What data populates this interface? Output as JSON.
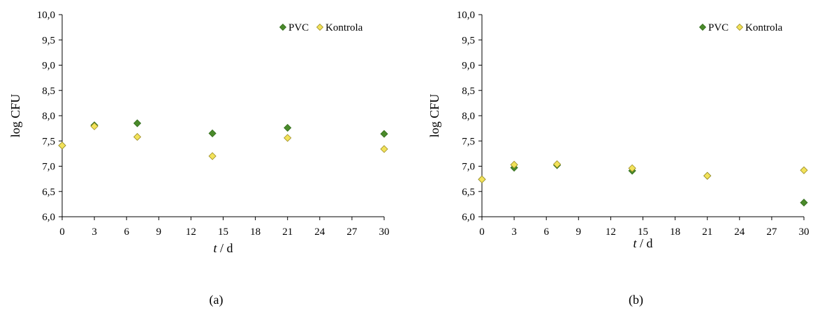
{
  "chart_data": [
    {
      "type": "scatter",
      "panel_label": "(a)",
      "xlabel_italic": "t",
      "xlabel_rest": " / d",
      "ylabel": "log CFU",
      "xlim": [
        0,
        30
      ],
      "ylim": [
        6.0,
        10.0
      ],
      "xticks": [
        0,
        3,
        6,
        9,
        12,
        15,
        18,
        21,
        24,
        27,
        30
      ],
      "xtick_labels": [
        "0",
        "3",
        "6",
        "9",
        "12",
        "15",
        "18",
        "21",
        "24",
        "27",
        "30"
      ],
      "yticks": [
        6.0,
        6.5,
        7.0,
        7.5,
        8.0,
        8.5,
        9.0,
        9.5,
        10.0
      ],
      "ytick_labels": [
        "6,0",
        "6,5",
        "7,0",
        "7,5",
        "8,0",
        "8,5",
        "9,0",
        "9,5",
        "10,0"
      ],
      "grid": false,
      "legend_position": "top-right",
      "series": [
        {
          "name": "PVC",
          "color": "#4a8a2a",
          "marker": "diamond",
          "x": [
            0,
            3,
            7,
            14,
            21,
            30
          ],
          "y": [
            7.41,
            7.81,
            7.85,
            7.65,
            7.76,
            7.64
          ]
        },
        {
          "name": "Kontrola",
          "color": "#f2e25a",
          "marker": "diamond",
          "x": [
            0,
            3,
            7,
            14,
            21,
            30
          ],
          "y": [
            7.41,
            7.79,
            7.58,
            7.2,
            7.56,
            7.34
          ]
        }
      ]
    },
    {
      "type": "scatter",
      "panel_label": "(b)",
      "xlabel_italic": "t",
      "xlabel_rest": " / d",
      "ylabel": "log CFU",
      "xlim": [
        0,
        30
      ],
      "ylim": [
        6.0,
        10.0
      ],
      "xticks": [
        0,
        3,
        6,
        9,
        12,
        15,
        18,
        21,
        24,
        27,
        30
      ],
      "xtick_labels": [
        "0",
        "3",
        "6",
        "9",
        "12",
        "15",
        "18",
        "21",
        "24",
        "27",
        "30"
      ],
      "yticks": [
        6.0,
        6.5,
        7.0,
        7.5,
        8.0,
        8.5,
        9.0,
        9.5,
        10.0
      ],
      "ytick_labels": [
        "6,0",
        "6,5",
        "7,0",
        "7,5",
        "8,0",
        "8,5",
        "9,0",
        "9,5",
        "10,0"
      ],
      "grid": false,
      "legend_position": "top-right",
      "series": [
        {
          "name": "PVC",
          "color": "#4a8a2a",
          "marker": "diamond",
          "x": [
            0,
            3,
            7,
            14,
            21,
            30
          ],
          "y": [
            6.74,
            6.97,
            7.02,
            6.91,
            6.81,
            6.28
          ]
        },
        {
          "name": "Kontrola",
          "color": "#f2e25a",
          "marker": "diamond",
          "x": [
            0,
            3,
            7,
            14,
            21,
            30
          ],
          "y": [
            6.74,
            7.03,
            7.04,
            6.96,
            6.81,
            6.92
          ]
        }
      ]
    }
  ]
}
